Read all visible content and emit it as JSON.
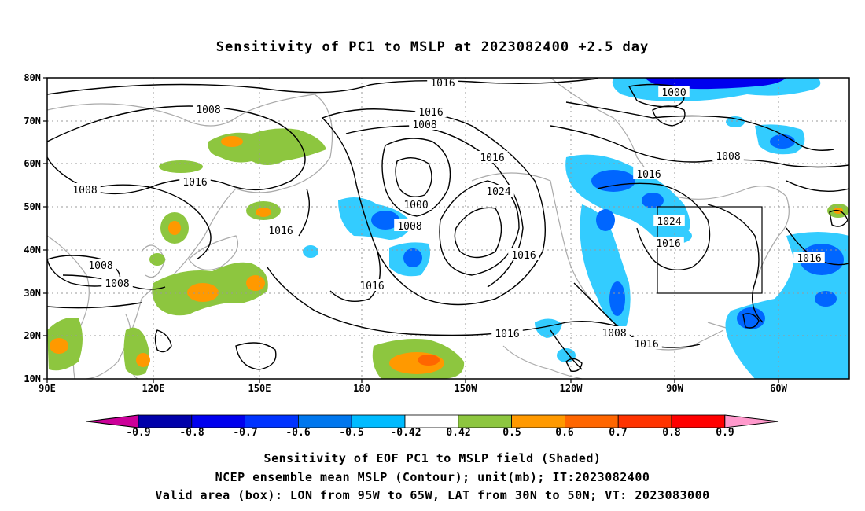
{
  "title": "Sensitivity of PC1 to MSLP at 2023082400 +2.5 day",
  "map": {
    "lat_labels": [
      "80N",
      "70N",
      "60N",
      "50N",
      "40N",
      "30N",
      "20N",
      "10N"
    ],
    "lon_labels": [
      "90E",
      "120E",
      "150E",
      "180",
      "150W",
      "120W",
      "90W",
      "60W"
    ],
    "valid_box": {
      "lon_range": [
        "95W",
        "65W"
      ],
      "lat_range": [
        "30N",
        "50N"
      ]
    },
    "contour_labels": [
      "1016",
      "1008",
      "1016",
      "1008",
      "1008",
      "1016",
      "1016",
      "1000",
      "1024",
      "1008",
      "1016",
      "1016",
      "1008",
      "1008",
      "1016",
      "1016",
      "1016",
      "1008",
      "1016",
      "1024",
      "1000",
      "1016",
      "1008",
      "1016"
    ],
    "shading": {
      "positive_color": "#8dc63f",
      "strong_positive_color": "#ff9900",
      "negative_color": "#33ccff",
      "strong_negative_color": "#0066ff",
      "coastline_color": "#aaaaaa",
      "contour_color": "#000000"
    }
  },
  "colorbar": {
    "labels": [
      "-0.9",
      "-0.8",
      "-0.7",
      "-0.6",
      "-0.5",
      "-0.42",
      "0.42",
      "0.5",
      "0.6",
      "0.7",
      "0.8",
      "0.9"
    ],
    "colors": [
      "#cc0099",
      "#0000aa",
      "#0000ee",
      "#0033ff",
      "#0077ee",
      "#00bbff",
      "#ffffff",
      "#8dc63f",
      "#ff9900",
      "#ff6600",
      "#ff3300",
      "#ff0000",
      "#ff99cc"
    ]
  },
  "captions": [
    "Sensitivity of EOF PC1 to MSLP field (Shaded)",
    "NCEP ensemble mean MSLP (Contour); unit(mb); IT:2023082400",
    "Valid area (box): LON from 95W to 65W, LAT from 30N to 50N; VT: 2023083000"
  ]
}
